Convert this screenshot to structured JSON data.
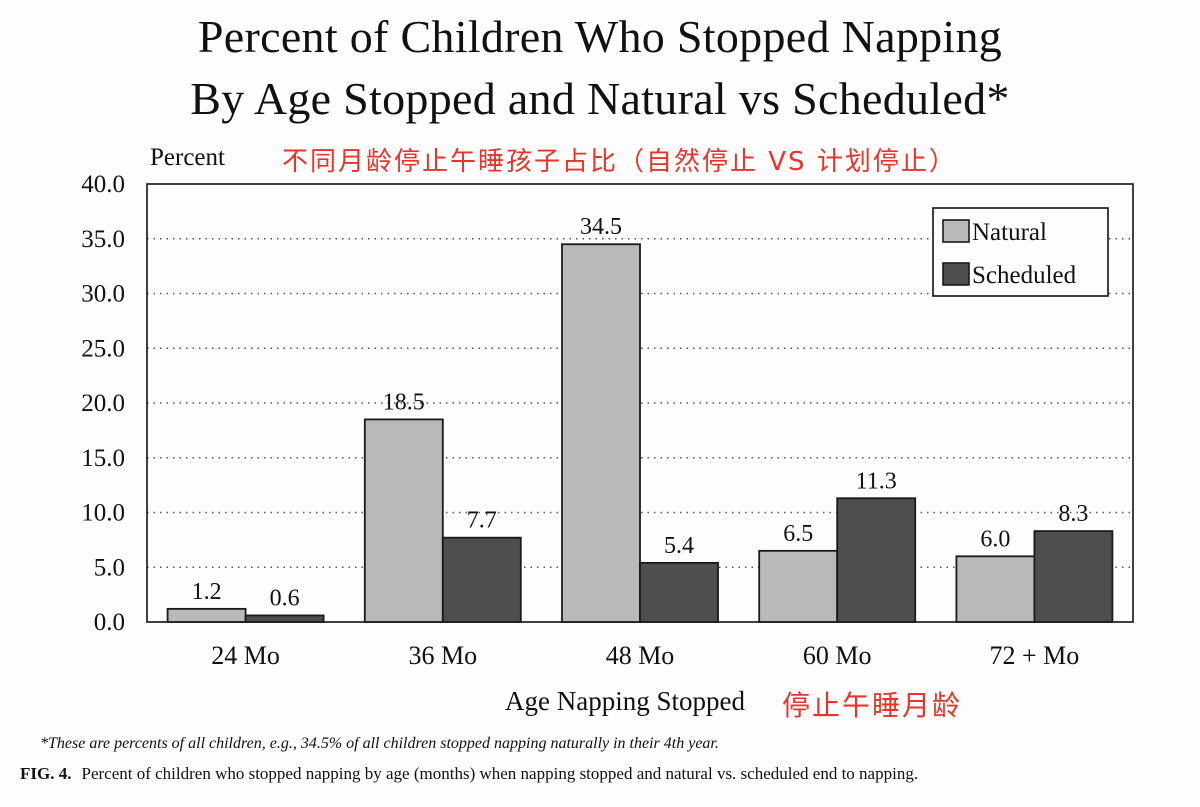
{
  "chart_data": {
    "type": "bar",
    "title_lines": [
      "Percent of Children Who Stopped Napping",
      "By Age Stopped and Natural vs Scheduled*"
    ],
    "ylabel": "Percent",
    "ylabel_translation": "不同月龄停止午睡孩子占比（自然停止 VS 计划停止）",
    "xlabel": "Age Napping Stopped",
    "xlabel_translation": "停止午睡月龄",
    "categories": [
      "24 Mo",
      "36 Mo",
      "48 Mo",
      "60 Mo",
      "72 + Mo"
    ],
    "series": [
      {
        "name": "Natural",
        "color": "#b9b9b9",
        "values": [
          1.2,
          18.5,
          34.5,
          6.5,
          6.0
        ],
        "labels": [
          "1.2",
          "18.5",
          "34.5",
          "6.5",
          "6.0"
        ]
      },
      {
        "name": "Scheduled",
        "color": "#4e4e4e",
        "values": [
          0.6,
          7.7,
          5.4,
          11.3,
          8.3
        ],
        "labels": [
          "0.6",
          "7.7",
          "5.4",
          "11.3",
          "8.3"
        ]
      }
    ],
    "ylim": [
      0,
      40
    ],
    "yticks": [
      "0.0",
      "5.0",
      "10.0",
      "15.0",
      "20.0",
      "25.0",
      "30.0",
      "35.0",
      "40.0"
    ],
    "grid": "dotted horizontal",
    "legend_position": "top-right"
  },
  "footnote": "*These are percents of all children, e.g., 34.5% of all children stopped napping naturally in their 4th year.",
  "caption": {
    "label": "FIG. 4.",
    "text": "Percent of children who stopped napping by age (months) when napping stopped and natural vs. scheduled end to napping."
  }
}
